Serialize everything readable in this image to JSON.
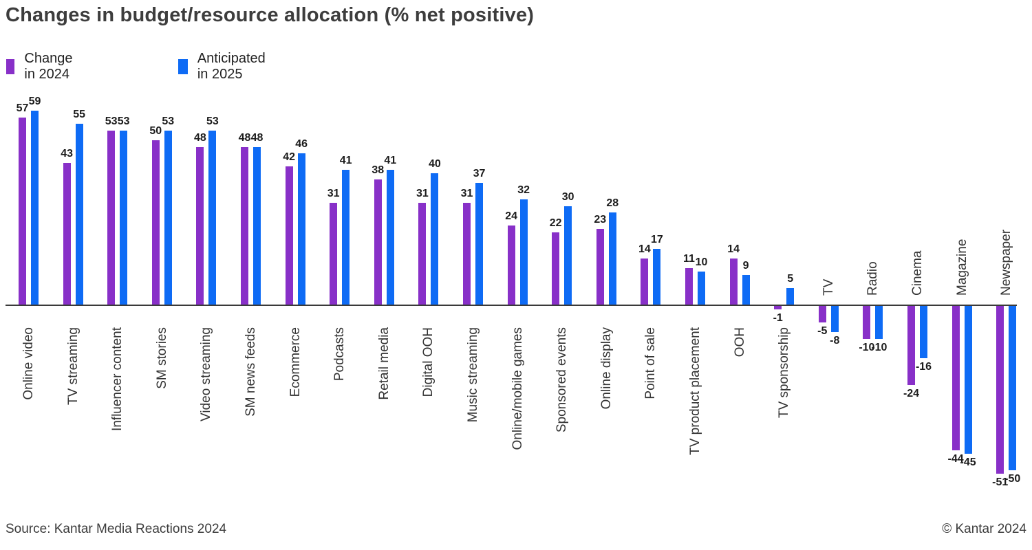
{
  "header": {
    "title": "Changes in budget/resource allocation (% net positive)"
  },
  "legend": [
    {
      "label": "Change in 2024",
      "color": "#8830C8"
    },
    {
      "label": "Anticipated in 2025",
      "color": "#0E6BF5"
    }
  ],
  "footer": {
    "source": "Source: Kantar Media Reactions 2024",
    "copyright": "© Kantar 2024"
  },
  "chart_data": {
    "type": "bar",
    "title": "Changes in budget/resource allocation (% net positive)",
    "categories": [
      "Online video",
      "TV streaming",
      "Influencer content",
      "SM stories",
      "Video streaming",
      "SM news feeds",
      "Ecommerce",
      "Podcasts",
      "Retail media",
      "Digital OOH",
      "Music streaming",
      "Online/mobile games",
      "Sponsored events",
      "Online display",
      "Point of sale",
      "TV product placement",
      "OOH",
      "TV sponsorship",
      "TV",
      "Radio",
      "Cinema",
      "Magazine",
      "Newspaper"
    ],
    "series": [
      {
        "name": "Change in 2024",
        "color": "#8830C8",
        "values": [
          57,
          43,
          53,
          50,
          48,
          48,
          42,
          31,
          38,
          31,
          31,
          24,
          22,
          23,
          14,
          11,
          14,
          -1,
          -5,
          -10,
          -24,
          -44,
          -51
        ]
      },
      {
        "name": "Anticipated in 2025",
        "color": "#0E6BF5",
        "values": [
          59,
          55,
          53,
          53,
          53,
          48,
          46,
          41,
          41,
          40,
          37,
          32,
          30,
          28,
          17,
          10,
          9,
          5,
          -8,
          -10,
          -16,
          -45,
          -50
        ]
      }
    ],
    "ylim": [
      -51,
      59
    ],
    "grid": false,
    "legend_position": "top-left",
    "value_labels": true,
    "axis_color": "#3a3a3a"
  }
}
